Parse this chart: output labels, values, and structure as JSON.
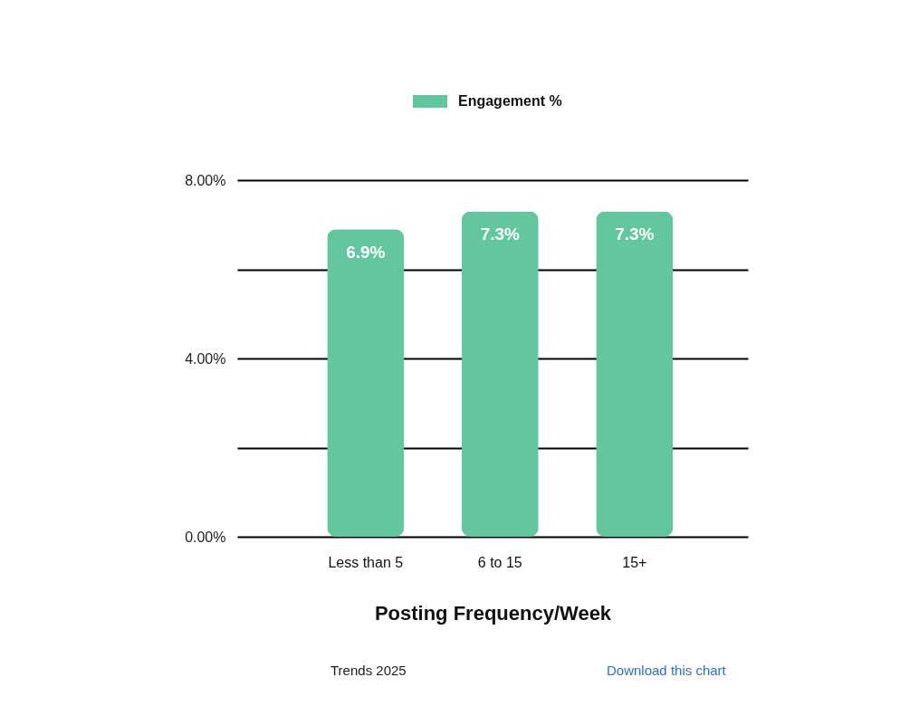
{
  "chart_data": {
    "type": "bar",
    "categories": [
      "Less than 5",
      "6 to 15",
      "15+"
    ],
    "series": [
      {
        "name": "Engagement %",
        "color": "#62c79f",
        "values": [
          6.9,
          7.3,
          7.3
        ],
        "value_labels": [
          "6.9%",
          "7.3%",
          "7.3%"
        ]
      }
    ],
    "xlabel": "Posting Frequency/Week",
    "ylim": [
      0,
      8
    ],
    "yticks": [
      {
        "value": 0,
        "label": "0.00%"
      },
      {
        "value": 2,
        "label": null
      },
      {
        "value": 4,
        "label": "4.00%"
      },
      {
        "value": 6,
        "label": null
      },
      {
        "value": 8,
        "label": "8.00%"
      }
    ],
    "grid": "y",
    "legend": "top",
    "annotations": [
      "Trends 2025",
      "Download this chart"
    ]
  }
}
